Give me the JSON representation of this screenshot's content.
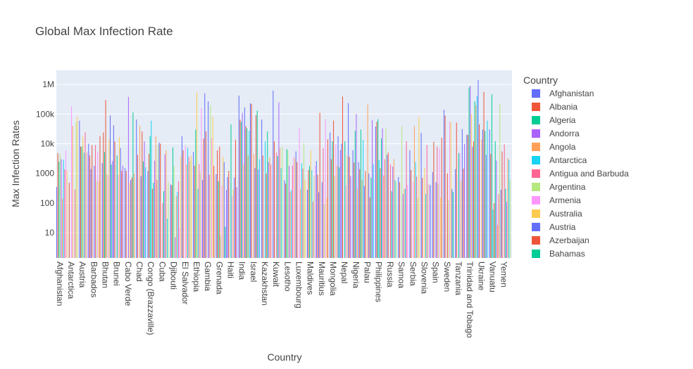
{
  "chart_data": {
    "type": "bar",
    "title": "Global Max Infection Rate",
    "xlabel": "Country",
    "ylabel": "Max Infection Rates",
    "yscale": "log",
    "ylim": [
      1.4,
      3000000
    ],
    "ytick_values": [
      10,
      100,
      1000,
      10000,
      100000,
      1000000
    ],
    "ytick_labels": [
      "10",
      "100",
      "1000",
      "10k",
      "100k",
      "1M"
    ],
    "grid": true,
    "legend_title": "Country",
    "legend_position": "right",
    "categories": [
      "Afghanistan",
      "Antarctica",
      "Austria",
      "Barbados",
      "Bhutan",
      "Brunei",
      "Cabo Verde",
      "Chad",
      "Congo (Brazzaville)",
      "Cuba",
      "Djibouti",
      "El Salvador",
      "Ethiopia",
      "Gambia",
      "Grenada",
      "Haiti",
      "India",
      "Israel",
      "Kazakhstan",
      "Kuwait",
      "Lesotho",
      "Luxembourg",
      "Maldives",
      "Mauritius",
      "Mongolia",
      "Nepal",
      "Nigeria",
      "Palau",
      "Philippines",
      "Russia",
      "Samoa",
      "Serbia",
      "Slovenia",
      "Spain",
      "Sweden",
      "Tanzania",
      "Trinidad and Tobago",
      "Ukraine",
      "Vanuatu",
      "Yemen"
    ],
    "series": [
      {
        "name": "Afghanistan",
        "color": "#636efa",
        "values": [
          350,
          null,
          60000,
          1400,
          2200,
          42000,
          1500,
          65000,
          1200,
          11000,
          420,
          18000,
          5200,
          500000,
          950,
          750,
          420000,
          230000,
          65000,
          620000,
          580,
          5500,
          280,
          230,
          24000,
          10000,
          6000,
          380,
          38000,
          4200,
          750,
          6000,
          23000,
          1100,
          140000,
          1400,
          20000,
          1400000,
          30000,
          280
        ]
      },
      {
        "name": "Albania",
        "color": "#EF553B",
        "values": [
          4800,
          480,
          8000,
          9000,
          24000,
          12000,
          1200,
          4200,
          4500,
          10000,
          400,
          6000,
          1800,
          26000,
          6000,
          1200,
          65000,
          220000,
          4000,
          12000,
          450,
          2400,
          1300,
          110000,
          3000,
          390000,
          2300,
          1200,
          55000,
          5000,
          500,
          1300,
          700,
          11500,
          90000,
          52000,
          20000,
          45000,
          4500,
          5500
        ]
      },
      {
        "name": "Algeria",
        "color": "#00cc96",
        "values": [
          2500,
          null,
          8000,
          null,
          5200,
          null,
          null,
          null,
          18000,
          null,
          7500,
          null,
          30000,
          null,
          550,
          null,
          55000,
          null,
          null,
          null,
          6500,
          null,
          1800,
          null,
          12000,
          null,
          27000,
          null,
          67000,
          null,
          null,
          null,
          null,
          null,
          null,
          null,
          800000,
          null,
          460000,
          null
        ]
      },
      {
        "name": "Andorra",
        "color": "#ab63fa",
        "values": [
          2300,
          null,
          null,
          null,
          null,
          null,
          null,
          null,
          null,
          null,
          null,
          null,
          null,
          null,
          null,
          null,
          null,
          null,
          null,
          null,
          null,
          null,
          null,
          null,
          null,
          null,
          null,
          null,
          null,
          null,
          null,
          null,
          null,
          null,
          null,
          null,
          null,
          null,
          null,
          null
        ]
      },
      {
        "name": "Angola",
        "color": "#FFA15A",
        "values": [
          5000,
          null,
          null,
          null,
          null,
          null,
          null,
          null,
          null,
          null,
          null,
          null,
          null,
          null,
          null,
          null,
          null,
          null,
          null,
          null,
          null,
          null,
          null,
          null,
          null,
          null,
          null,
          null,
          null,
          null,
          null,
          null,
          null,
          null,
          null,
          null,
          null,
          null,
          null,
          null
        ]
      },
      {
        "name": "Antarctica",
        "color": "#19d3f3",
        "values": [
          null,
          11,
          null,
          null,
          null,
          null,
          null,
          null,
          null,
          null,
          null,
          null,
          null,
          null,
          null,
          null,
          null,
          null,
          null,
          null,
          null,
          null,
          null,
          null,
          null,
          null,
          null,
          null,
          null,
          null,
          null,
          null,
          null,
          null,
          null,
          null,
          null,
          null,
          null,
          null
        ]
      },
      {
        "name": "Antigua and Barbuda",
        "color": "#FF6692",
        "values": [
          null,
          null,
          null,
          null,
          null,
          null,
          null,
          null,
          null,
          null,
          null,
          null,
          null,
          null,
          null,
          null,
          null,
          null,
          null,
          null,
          null,
          null,
          null,
          null,
          null,
          null,
          null,
          null,
          null,
          null,
          null,
          null,
          null,
          null,
          null,
          null,
          null,
          null,
          null,
          null
        ]
      },
      {
        "name": "Argentina",
        "color": "#B6E880",
        "values": [
          null,
          140000,
          null,
          140000,
          null,
          null,
          null,
          null,
          null,
          null,
          null,
          null,
          null,
          null,
          null,
          null,
          null,
          null,
          null,
          null,
          null,
          null,
          null,
          null,
          null,
          null,
          null,
          null,
          null,
          null,
          null,
          null,
          null,
          null,
          null,
          null,
          null,
          null,
          null,
          null
        ]
      },
      {
        "name": "Armenia",
        "color": "#FF97FF",
        "values": [
          null,
          null,
          null,
          null,
          null,
          null,
          null,
          null,
          null,
          null,
          null,
          null,
          null,
          null,
          null,
          null,
          null,
          null,
          null,
          null,
          null,
          null,
          null,
          null,
          null,
          null,
          null,
          null,
          null,
          null,
          null,
          null,
          null,
          null,
          null,
          null,
          null,
          null,
          null,
          null
        ]
      },
      {
        "name": "Australia",
        "color": "#FECB52",
        "values": [
          null,
          null,
          null,
          null,
          null,
          null,
          null,
          null,
          null,
          null,
          null,
          null,
          null,
          null,
          null,
          null,
          null,
          null,
          null,
          null,
          null,
          null,
          null,
          null,
          null,
          null,
          null,
          null,
          null,
          null,
          null,
          null,
          null,
          null,
          null,
          null,
          null,
          null,
          null,
          null
        ]
      },
      {
        "name": "Austria",
        "color": "#636efa",
        "values": [
          null,
          null,
          null,
          null,
          null,
          null,
          null,
          null,
          null,
          null,
          null,
          null,
          null,
          null,
          null,
          null,
          null,
          null,
          null,
          null,
          null,
          null,
          null,
          null,
          null,
          null,
          null,
          null,
          null,
          null,
          null,
          null,
          null,
          null,
          null,
          null,
          null,
          null,
          null,
          null
        ]
      },
      {
        "name": "Azerbaijan",
        "color": "#EF553B",
        "values": [
          null,
          null,
          null,
          null,
          null,
          null,
          null,
          null,
          null,
          null,
          null,
          null,
          null,
          null,
          null,
          null,
          null,
          null,
          null,
          null,
          null,
          null,
          null,
          null,
          null,
          null,
          null,
          null,
          null,
          null,
          null,
          null,
          null,
          null,
          null,
          null,
          null,
          null,
          null,
          null
        ]
      },
      {
        "name": "Bahamas",
        "color": "#00cc96",
        "values": [
          null,
          null,
          null,
          null,
          null,
          null,
          null,
          null,
          null,
          null,
          null,
          null,
          null,
          null,
          null,
          null,
          null,
          null,
          null,
          null,
          null,
          null,
          null,
          null,
          null,
          null,
          null,
          null,
          null,
          null,
          null,
          null,
          null,
          null,
          null,
          null,
          null,
          null,
          null,
          null
        ]
      }
    ],
    "extra_bars_note_values": {
      "fill_a": [
        4500,
        180000,
        17000,
        1800,
        300000,
        4000,
        380000,
        40000,
        60000,
        100,
        1800,
        8500,
        550000,
        270000,
        8000,
        45000,
        110000,
        4500,
        12000,
        5000,
        6000,
        35000,
        6000,
        500,
        60000,
        12000,
        100000,
        210000,
        2800,
        2000,
        40000,
        500,
        1500,
        500,
        1000,
        4800,
        900000,
        14000,
        60,
        9500
      ],
      "fill_b": [
        3000,
        40000,
        5000,
        9000,
        1000,
        900,
        500,
        800,
        300,
        250,
        7,
        2000,
        300,
        900,
        8,
        170,
        2000,
        1500,
        1000,
        3800,
        1800,
        300,
        1300,
        7000,
        800,
        400,
        300,
        1000,
        1500,
        250,
        200,
        40000,
        200,
        8000,
        120,
        5000,
        100000,
        30000,
        100,
        300
      ]
    }
  }
}
